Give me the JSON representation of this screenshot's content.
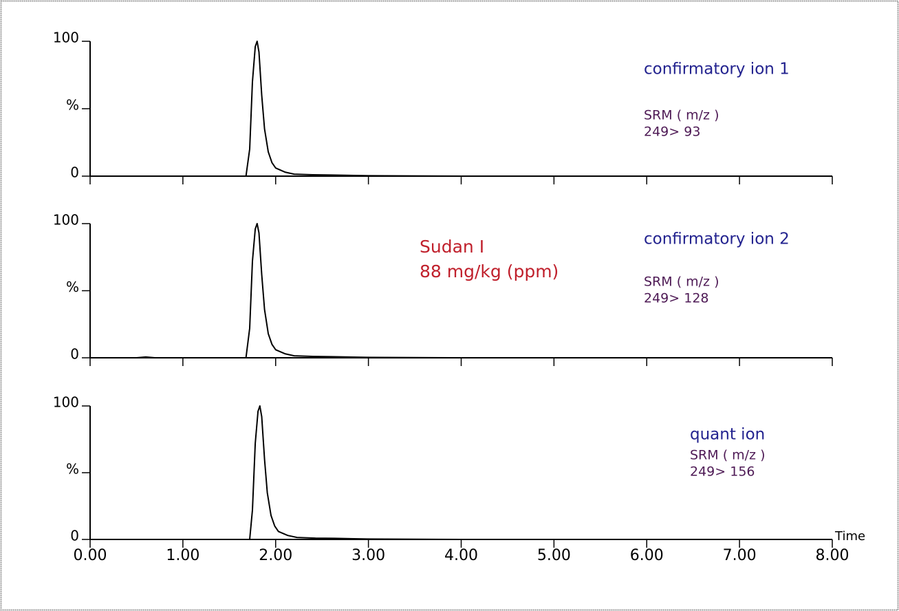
{
  "chart_data": [
    {
      "type": "line",
      "xlim": [
        0,
        8
      ],
      "ylim": [
        0,
        100
      ],
      "xticks": [
        0,
        1,
        2,
        3,
        4,
        5,
        6,
        7,
        8
      ],
      "xtick_labels": false,
      "yticks": [
        0,
        {
          "value": 50,
          "label": "%"
        },
        100
      ],
      "x": [
        0,
        1.68,
        1.72,
        1.75,
        1.78,
        1.8,
        1.82,
        1.85,
        1.88,
        1.92,
        1.96,
        2.0,
        2.1,
        2.2,
        2.4,
        2.6,
        3.0,
        4.0,
        8.0
      ],
      "series": [
        {
          "color": "#000000",
          "values": [
            0,
            0,
            20,
            70,
            96,
            100,
            92,
            60,
            35,
            18,
            10,
            6,
            3,
            1.5,
            1,
            0.8,
            0.3,
            0,
            0
          ]
        }
      ],
      "annotations": [
        {
          "lines": [
            "confirmatory ion 1"
          ],
          "color": "#23238f"
        },
        {
          "lines": [
            "SRM ( m/z )",
            "249> 93"
          ],
          "color": "#4e1a55"
        }
      ]
    },
    {
      "type": "line",
      "xlim": [
        0,
        8
      ],
      "ylim": [
        0,
        100
      ],
      "xticks": [
        0,
        1,
        2,
        3,
        4,
        5,
        6,
        7,
        8
      ],
      "xtick_labels": false,
      "yticks": [
        0,
        {
          "value": 50,
          "label": "%"
        },
        100
      ],
      "x": [
        0,
        0.5,
        0.6,
        0.7,
        1.68,
        1.72,
        1.75,
        1.78,
        1.8,
        1.82,
        1.85,
        1.88,
        1.92,
        1.96,
        2.0,
        2.1,
        2.2,
        2.4,
        2.6,
        3.0,
        4.0,
        8.0
      ],
      "series": [
        {
          "color": "#000000",
          "values": [
            0,
            0,
            0.6,
            0,
            0,
            22,
            72,
            96,
            100,
            93,
            62,
            36,
            18,
            10,
            6,
            3,
            1.5,
            1,
            0.8,
            0.3,
            0,
            0
          ]
        }
      ],
      "annotations": [
        {
          "lines": [
            "Sudan I",
            "88 mg/kg (ppm)"
          ],
          "color": "#c0202c"
        },
        {
          "lines": [
            "confirmatory ion 2"
          ],
          "color": "#23238f"
        },
        {
          "lines": [
            "SRM ( m/z )",
            "249> 128"
          ],
          "color": "#4e1a55"
        }
      ]
    },
    {
      "type": "line",
      "xlim": [
        0,
        8
      ],
      "ylim": [
        0,
        100
      ],
      "xticks": [
        {
          "value": 0,
          "label": "0.00"
        },
        {
          "value": 1,
          "label": "1.00"
        },
        {
          "value": 2,
          "label": "2.00"
        },
        {
          "value": 3,
          "label": "3.00"
        },
        {
          "value": 4,
          "label": "4.00"
        },
        {
          "value": 5,
          "label": "5.00"
        },
        {
          "value": 6,
          "label": "6.00"
        },
        {
          "value": 7,
          "label": "7.00"
        },
        {
          "value": 8,
          "label": "8.00"
        }
      ],
      "xtick_labels": true,
      "xlabel": "Time",
      "yticks": [
        0,
        {
          "value": 50,
          "label": "%"
        },
        100
      ],
      "x": [
        0,
        1.72,
        1.75,
        1.78,
        1.81,
        1.83,
        1.85,
        1.88,
        1.91,
        1.95,
        1.99,
        2.03,
        2.13,
        2.23,
        2.43,
        2.63,
        3.0,
        4.0,
        8.0
      ],
      "series": [
        {
          "color": "#000000",
          "values": [
            0,
            0,
            22,
            72,
            96,
            100,
            92,
            60,
            35,
            18,
            10,
            6,
            3,
            1.5,
            1,
            0.8,
            0.3,
            0,
            0
          ]
        }
      ],
      "annotations": [
        {
          "lines": [
            "quant ion"
          ],
          "color": "#23238f"
        },
        {
          "lines": [
            "SRM ( m/z )",
            "249> 156"
          ],
          "color": "#4e1a55"
        }
      ]
    }
  ]
}
